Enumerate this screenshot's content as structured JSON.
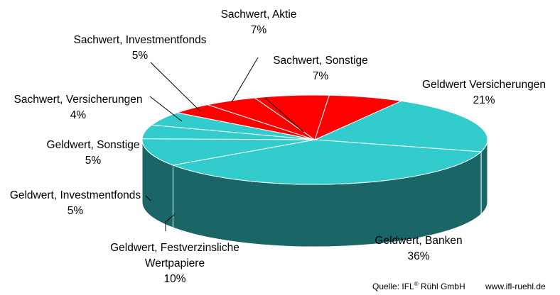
{
  "chart_data": {
    "type": "pie",
    "style": "3d-tilted",
    "slices": [
      {
        "label": "Geldwert Versicherungen",
        "pct_label": "21%",
        "value": 21,
        "group": "Geldwert"
      },
      {
        "label": "Geldwert, Banken",
        "pct_label": "36%",
        "value": 36,
        "group": "Geldwert"
      },
      {
        "label": "Geldwert, Festverzinsliche Wertpapiere",
        "label_lines": [
          "Geldwert, Festverzinsliche",
          "Wertpapiere"
        ],
        "pct_label": "10%",
        "value": 10,
        "group": "Geldwert"
      },
      {
        "label": "Geldwert, Investmentfonds",
        "pct_label": "5%",
        "value": 5,
        "group": "Geldwert"
      },
      {
        "label": "Geldwert, Sonstige",
        "pct_label": "5%",
        "value": 5,
        "group": "Geldwert"
      },
      {
        "label": "Sachwert, Versicherungen",
        "pct_label": "4%",
        "value": 4,
        "group": "Sachwert"
      },
      {
        "label": "Sachwert, Investmentfonds",
        "pct_label": "5%",
        "value": 5,
        "group": "Sachwert"
      },
      {
        "label": "Sachwert, Aktie",
        "pct_label": "7%",
        "value": 7,
        "group": "Sachwert"
      },
      {
        "label": "Sachwert, Sonstige",
        "pct_label": "7%",
        "value": 7,
        "group": "Sachwert"
      }
    ],
    "colors": {
      "Geldwert": "#33cccc",
      "Geldwert_side": "#1a6666",
      "Sachwert": "#ff0000",
      "Sachwert_side": "#b30000",
      "edge": "#ffffff"
    },
    "legend": "none"
  },
  "source": {
    "prefix": "Quelle:  IFL",
    "sup": "®",
    "suffix": " Rühl GmbH",
    "url": "www.ifl-ruehl.de"
  }
}
